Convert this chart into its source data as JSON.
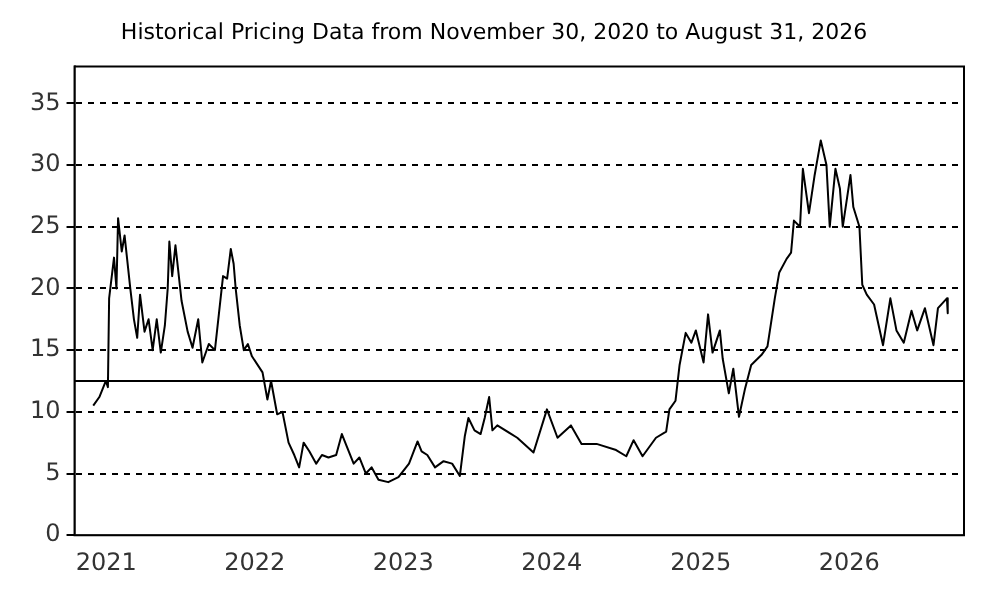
{
  "chart_data": {
    "type": "line",
    "title": "Historical Pricing Data from November 30, 2020 to August 31, 2026",
    "x": [
      "2020-11-30",
      "2020-12-15",
      "2020-12-31",
      "2021-01-05",
      "2021-01-08",
      "2021-01-20",
      "2021-01-26",
      "2021-01-30",
      "2021-02-08",
      "2021-02-15",
      "2021-03-01",
      "2021-03-10",
      "2021-03-18",
      "2021-03-25",
      "2021-04-05",
      "2021-04-15",
      "2021-04-25",
      "2021-05-05",
      "2021-05-15",
      "2021-05-25",
      "2021-06-01",
      "2021-06-05",
      "2021-06-12",
      "2021-06-20",
      "2021-07-05",
      "2021-07-20",
      "2021-08-01",
      "2021-08-15",
      "2021-08-25",
      "2021-09-10",
      "2021-09-25",
      "2021-10-05",
      "2021-10-15",
      "2021-10-25",
      "2021-11-03",
      "2021-11-10",
      "2021-11-15",
      "2021-11-25",
      "2021-12-05",
      "2021-12-15",
      "2021-12-25",
      "2022-01-20",
      "2022-02-01",
      "2022-02-10",
      "2022-02-25",
      "2022-03-10",
      "2022-03-25",
      "2022-04-08",
      "2022-04-20",
      "2022-05-01",
      "2022-05-15",
      "2022-06-01",
      "2022-06-15",
      "2022-07-01",
      "2022-07-20",
      "2022-08-03",
      "2022-08-15",
      "2022-09-01",
      "2022-09-15",
      "2022-10-01",
      "2022-10-15",
      "2022-11-01",
      "2022-11-25",
      "2022-12-20",
      "2023-01-15",
      "2023-02-05",
      "2023-02-15",
      "2023-03-01",
      "2023-03-20",
      "2023-04-10",
      "2023-05-01",
      "2023-05-20",
      "2023-06-01",
      "2023-06-10",
      "2023-06-25",
      "2023-07-10",
      "2023-07-20",
      "2023-07-31",
      "2023-08-08",
      "2023-08-20",
      "2023-10-08",
      "2023-11-17",
      "2023-12-20",
      "2024-01-15",
      "2024-02-17",
      "2024-03-14",
      "2024-04-20",
      "2024-06-07",
      "2024-07-02",
      "2024-07-20",
      "2024-08-11",
      "2024-09-13",
      "2024-10-08",
      "2024-10-16",
      "2024-10-31",
      "2024-11-10",
      "2024-11-25",
      "2024-12-09",
      "2024-12-20",
      "2025-01-08",
      "2025-01-19",
      "2025-01-30",
      "2025-02-17",
      "2025-02-24",
      "2025-03-11",
      "2025-03-22",
      "2025-04-05",
      "2025-04-20",
      "2025-05-05",
      "2025-05-30",
      "2025-06-14",
      "2025-07-02",
      "2025-07-13",
      "2025-07-31",
      "2025-08-11",
      "2025-08-18",
      "2025-09-02",
      "2025-09-09",
      "2025-09-24",
      "2025-10-08",
      "2025-10-23",
      "2025-11-06",
      "2025-11-14",
      "2025-11-28",
      "2025-12-09",
      "2025-12-16",
      "2026-01-04",
      "2026-01-11",
      "2026-01-26",
      "2026-02-02",
      "2026-02-13",
      "2026-03-03",
      "2026-03-25",
      "2026-04-12",
      "2026-04-27",
      "2026-05-15",
      "2026-06-03",
      "2026-06-17",
      "2026-07-06",
      "2026-07-27",
      "2026-08-07",
      "2026-08-29",
      "2026-08-31"
    ],
    "values": [
      10.5,
      11.2,
      12.5,
      12.0,
      19.2,
      22.5,
      20,
      25.7,
      23,
      24.3,
      20,
      17.5,
      16,
      19.5,
      16.5,
      17.5,
      15,
      17.5,
      14.8,
      17,
      20,
      23.8,
      21,
      23.5,
      19,
      16.5,
      15.2,
      17.5,
      14,
      15.5,
      15,
      18,
      21,
      20.8,
      23.2,
      22,
      20,
      17,
      15,
      15.5,
      14.5,
      13.2,
      11,
      12.5,
      9.8,
      10,
      7.5,
      6.5,
      5.5,
      7.5,
      6.8,
      5.8,
      6.5,
      6.3,
      6.5,
      8.2,
      7.2,
      5.8,
      6.3,
      5,
      5.5,
      4.5,
      4.3,
      4.7,
      5.8,
      7.6,
      6.8,
      6.5,
      5.5,
      6,
      5.8,
      4.8,
      8,
      9.5,
      8.5,
      8.2,
      9.5,
      11.2,
      8.5,
      8.9,
      7.9,
      6.7,
      10.2,
      7.9,
      8.9,
      7.4,
      7.4,
      6.9,
      6.4,
      7.7,
      6.4,
      7.9,
      8.4,
      10.2,
      10.9,
      13.8,
      16.4,
      15.6,
      16.6,
      14,
      17.9,
      14.8,
      16.6,
      14.3,
      11.5,
      13.5,
      9.6,
      11.9,
      13.8,
      14.6,
      15.3,
      19.2,
      21.3,
      22.4,
      22.9,
      25.5,
      25,
      29.7,
      26.1,
      29.2,
      32,
      30,
      25,
      29.7,
      28.1,
      25,
      29.2,
      26.6,
      25,
      20.3,
      19.5,
      18.7,
      15.4,
      19.2,
      16.6,
      15.6,
      18.2,
      16.6,
      18.4,
      15.4,
      18.4,
      19.2,
      18
    ],
    "color": "#000000",
    "xlim": [
      "2020-10-15",
      "2026-10-10"
    ],
    "xticks": [
      {
        "value": "2021-01-01",
        "label": "2021"
      },
      {
        "value": "2022-01-01",
        "label": "2022"
      },
      {
        "value": "2023-01-01",
        "label": "2023"
      },
      {
        "value": "2024-01-01",
        "label": "2024"
      },
      {
        "value": "2025-01-01",
        "label": "2025"
      },
      {
        "value": "2026-01-01",
        "label": "2026"
      }
    ],
    "ylim": [
      0,
      38
    ],
    "yticks": [
      0,
      5,
      10,
      15,
      20,
      25,
      30,
      35
    ],
    "grid": "y",
    "marker": "none",
    "line_style": "solid",
    "ref_lines": [
      {
        "axis": "y",
        "value": 12.5,
        "color": "#000000",
        "line_style": "solid"
      }
    ]
  }
}
